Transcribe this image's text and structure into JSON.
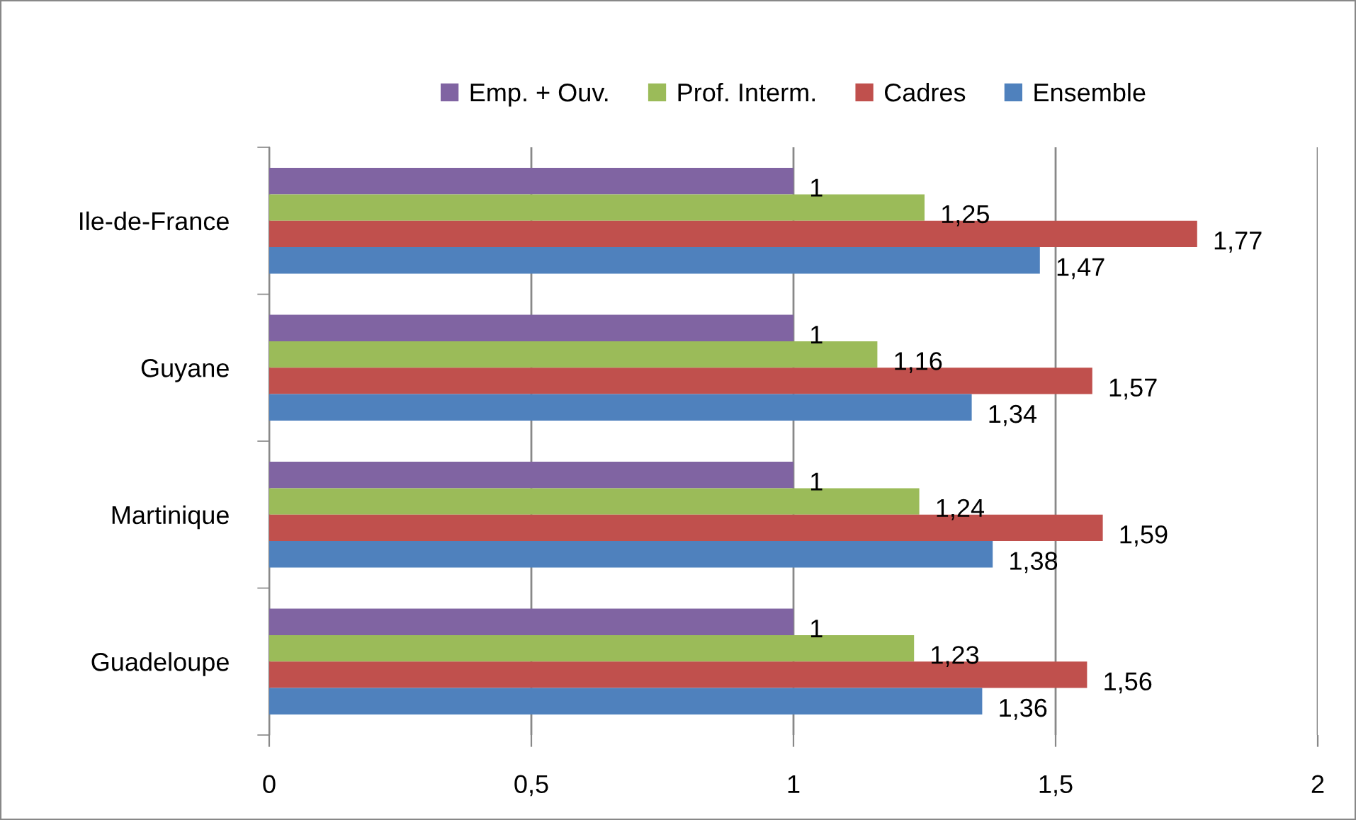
{
  "chart_data": {
    "type": "bar",
    "orientation": "horizontal",
    "categories": [
      "Ile-de-France",
      "Guyane",
      "Martinique",
      "Guadeloupe"
    ],
    "series": [
      {
        "name": "Emp. + Ouv.",
        "color": "#8064a2",
        "values": [
          1,
          1,
          1,
          1
        ],
        "value_labels": [
          "1",
          "1",
          "1",
          "1"
        ]
      },
      {
        "name": "Prof. Interm.",
        "color": "#9bbb59",
        "values": [
          1.25,
          1.16,
          1.24,
          1.23
        ],
        "value_labels": [
          "1,25",
          "1,16",
          "1,24",
          "1,23"
        ]
      },
      {
        "name": "Cadres",
        "color": "#c0504d",
        "values": [
          1.77,
          1.57,
          1.59,
          1.56
        ],
        "value_labels": [
          "1,77",
          "1,57",
          "1,59",
          "1,56"
        ]
      },
      {
        "name": "Ensemble",
        "color": "#4f81bd",
        "values": [
          1.47,
          1.34,
          1.38,
          1.36
        ],
        "value_labels": [
          "1,47",
          "1,34",
          "1,38",
          "1,36"
        ]
      }
    ],
    "xlim": [
      0,
      2
    ],
    "xticks": [
      0,
      {
        "value": 0.5,
        "label": "0,5"
      },
      1,
      {
        "value": 1.5,
        "label": "1,5"
      },
      2
    ],
    "grid": "x",
    "legend": "top"
  }
}
